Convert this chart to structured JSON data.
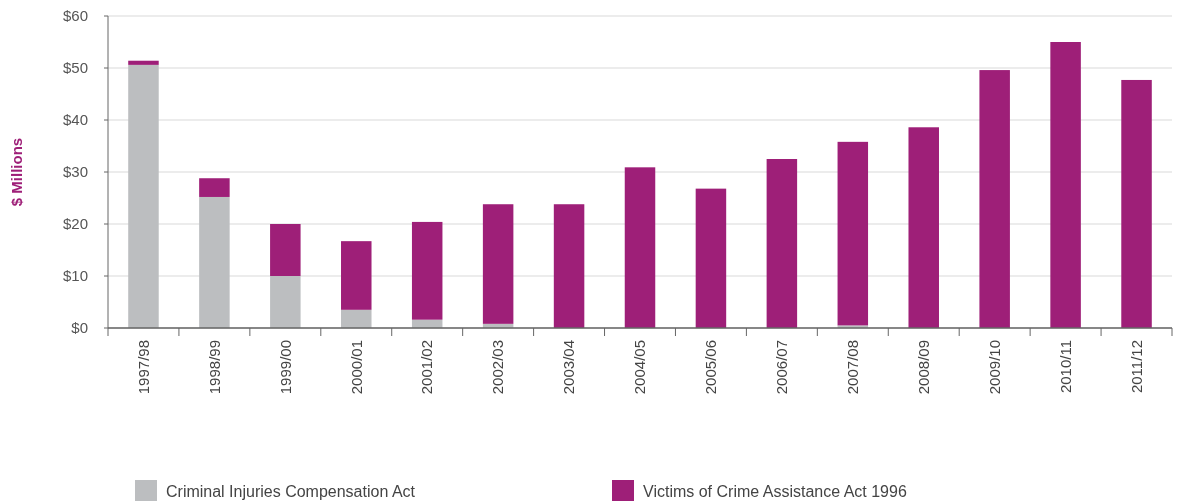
{
  "chart_data": {
    "type": "bar",
    "stacked": true,
    "ylabel": "$ Millions",
    "categories": [
      "1997/98",
      "1998/99",
      "1999/00",
      "2000/01",
      "2001/02",
      "2002/03",
      "2003/04",
      "2004/05",
      "2005/06",
      "2006/07",
      "2007/08",
      "2008/09",
      "2009/10",
      "2010/11",
      "2011/12"
    ],
    "series": [
      {
        "name": "Criminal Injuries Compensation Act",
        "color": "#bcbec0",
        "values": [
          50.6,
          25.2,
          10.0,
          3.5,
          1.6,
          0.8,
          null,
          null,
          null,
          null,
          0.5,
          null,
          0,
          0,
          0
        ]
      },
      {
        "name": "Victims of Crime Assistance Act 1996",
        "color": "#9e1f78",
        "values": [
          0.8,
          3.6,
          10.0,
          13.2,
          18.8,
          23.0,
          23.8,
          30.9,
          26.8,
          32.5,
          35.3,
          38.6,
          49.6,
          55.0,
          47.7
        ]
      }
    ],
    "ylim": [
      0,
      60
    ],
    "yticks": [
      {
        "value": 0,
        "label": "$0"
      },
      {
        "value": 10,
        "label": "$10"
      },
      {
        "value": 20,
        "label": "$20"
      },
      {
        "value": 30,
        "label": "$30"
      },
      {
        "value": 40,
        "label": "$40"
      },
      {
        "value": 50,
        "label": "$50"
      },
      {
        "value": 60,
        "label": "$60"
      }
    ],
    "grid": "y",
    "legend": "bottom"
  }
}
